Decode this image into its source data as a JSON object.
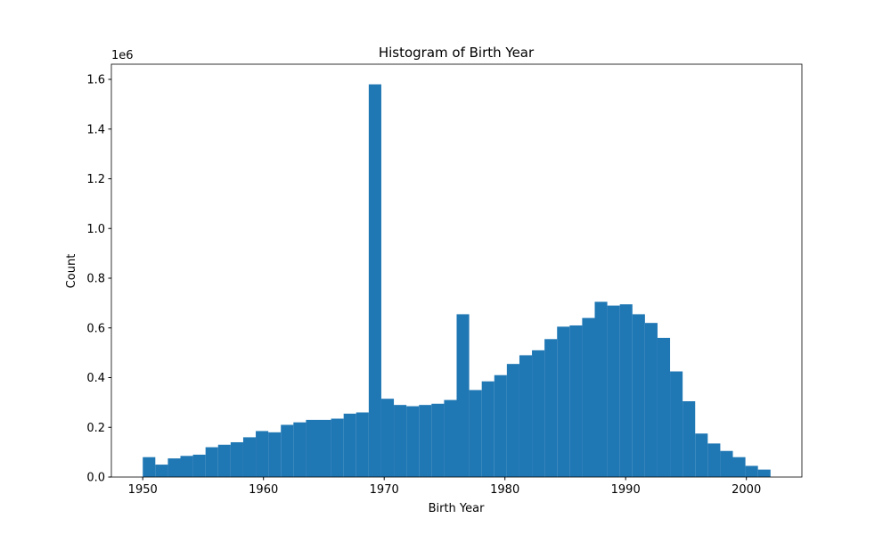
{
  "chart_data": {
    "type": "histogram",
    "title": "Histogram of Birth Year",
    "x_label": "Birth Year",
    "y_label": "Count",
    "y_offset_label": "1e6",
    "color": "#1f77b4",
    "bins": [
      1950,
      1951.04,
      1952.08,
      1953.12,
      1954.16,
      1955.2,
      1956.24,
      1957.28,
      1958.32,
      1959.36,
      1960.4,
      1961.44,
      1962.48,
      1963.52,
      1964.56,
      1965.6,
      1966.64,
      1967.68,
      1968.72,
      1969.76,
      1970.8,
      1971.84,
      1972.88,
      1973.92,
      1974.96,
      1976,
      1977.04,
      1978.08,
      1979.12,
      1980.16,
      1981.2,
      1982.24,
      1983.28,
      1984.32,
      1985.36,
      1986.4,
      1987.44,
      1988.48,
      1989.52,
      1990.56,
      1991.6,
      1992.64,
      1993.68,
      1994.72,
      1995.76,
      1996.8,
      1997.84,
      1998.88,
      1999.92,
      2000.96,
      2002
    ],
    "values": [
      80000,
      50000,
      75000,
      85000,
      90000,
      120000,
      130000,
      140000,
      160000,
      185000,
      180000,
      210000,
      220000,
      230000,
      230000,
      235000,
      255000,
      260000,
      1580000,
      315000,
      290000,
      285000,
      290000,
      295000,
      310000,
      655000,
      350000,
      385000,
      410000,
      455000,
      490000,
      510000,
      555000,
      605000,
      610000,
      640000,
      705000,
      690000,
      695000,
      655000,
      620000,
      560000,
      425000,
      305000,
      175000,
      135000,
      105000,
      80000,
      45000,
      30000
    ],
    "xlim": [
      1947.4,
      2004.6
    ],
    "xticks": [
      1950,
      1960,
      1970,
      1980,
      1990,
      2000
    ],
    "ylim": [
      0,
      1661000
    ],
    "yticks": [
      {
        "value": 0,
        "label": "0.0"
      },
      {
        "value": 200000,
        "label": "0.2"
      },
      {
        "value": 400000,
        "label": "0.4"
      },
      {
        "value": 600000,
        "label": "0.6"
      },
      {
        "value": 800000,
        "label": "0.8"
      },
      {
        "value": 1000000,
        "label": "1.0"
      },
      {
        "value": 1200000,
        "label": "1.2"
      },
      {
        "value": 1400000,
        "label": "1.4"
      },
      {
        "value": 1600000,
        "label": "1.6"
      }
    ],
    "grid": false
  }
}
